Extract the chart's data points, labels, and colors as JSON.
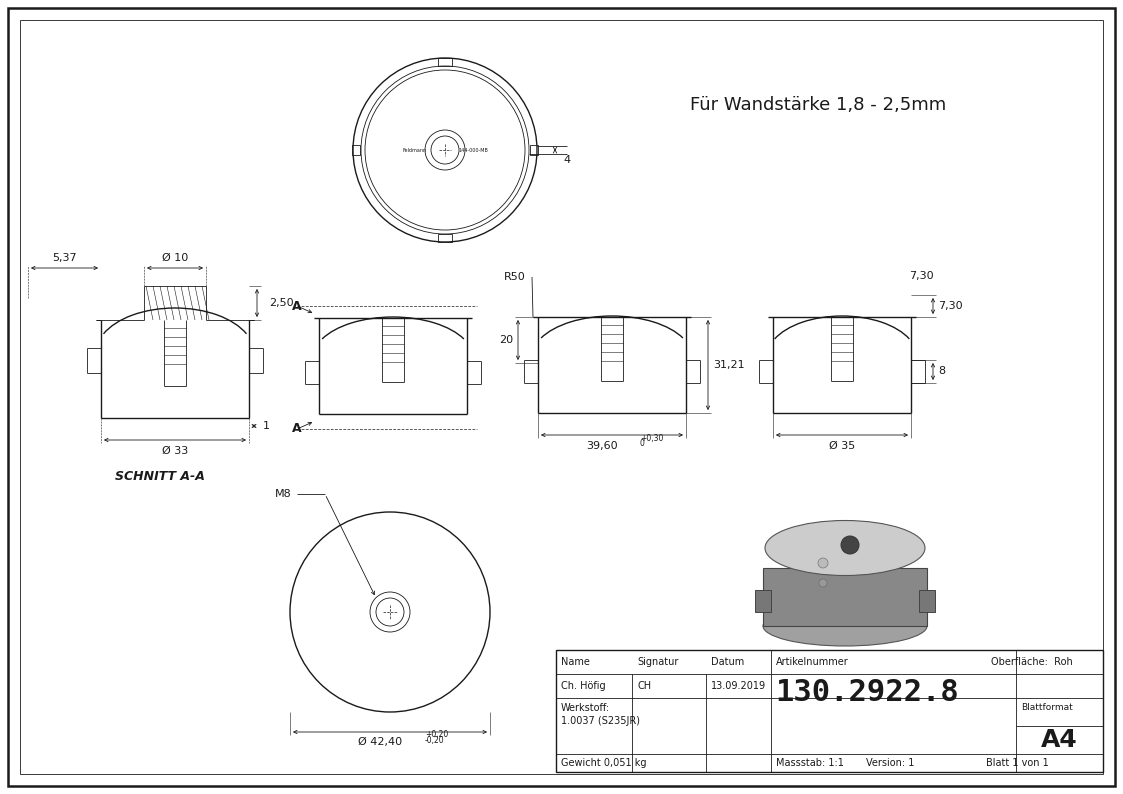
{
  "line_color": "#1a1a1a",
  "title_text": "Für Wandstärke 1,8 - 2,5mm",
  "article_number": "130.2922.8",
  "name": "Ch. Höfig",
  "signatur": "CH",
  "datum": "13.09.2019",
  "werkstoff_label": "Werkstoff:",
  "werkstoff": "1.0037 (S235JR)",
  "gewicht": "Gewicht 0,051 kg",
  "massstab": "Massstab: 1:1",
  "version": "Version: 1",
  "blatt": "Blatt 1 von 1",
  "blattformat_label": "Blattformat",
  "blattformat_val": "A4",
  "oberflaeche": "Oberfläche:  Roh",
  "schnitt_label": "SCHNITT A-A",
  "col_name_label": "Name",
  "col_sig_label": "Signatur",
  "col_dat_label": "Datum",
  "col_art_label": "Artikelnummer"
}
